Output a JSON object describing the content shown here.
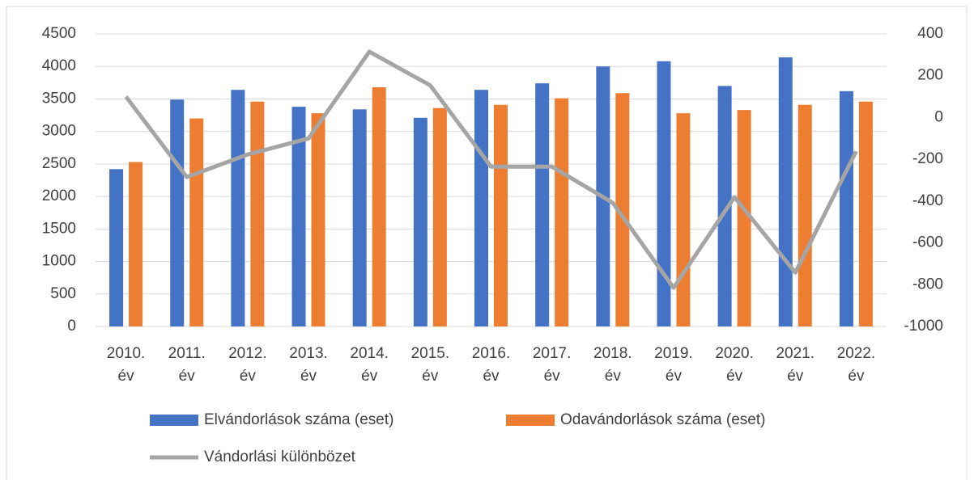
{
  "chart_data": {
    "type": "bar",
    "categories": [
      "2010. év",
      "2011. év",
      "2012. év",
      "2013. év",
      "2014. év",
      "2015. év",
      "2016. év",
      "2017. év",
      "2018. év",
      "2019. év",
      "2020. év",
      "2021. év",
      "2022. év"
    ],
    "series": [
      {
        "name": "Elvándorlások száma (eset)",
        "color": "#4472c4",
        "values": [
          2420,
          3490,
          3640,
          3380,
          3340,
          3210,
          3640,
          3740,
          4000,
          4080,
          3700,
          4140,
          3620
        ]
      },
      {
        "name": "Odavándorlások száma (eset)",
        "color": "#ed7d31",
        "values": [
          2530,
          3200,
          3460,
          3280,
          3680,
          3360,
          3410,
          3510,
          3590,
          3280,
          3330,
          3410,
          3460
        ]
      },
      {
        "name": "Vándorlási különbözet",
        "color": "#a5a5a5",
        "type": "line",
        "axis": "y2",
        "values": [
          100,
          -285,
          -177,
          -100,
          315,
          154,
          -235,
          -235,
          -408,
          -815,
          -381,
          -742,
          -162
        ]
      }
    ],
    "ylim": [
      0,
      4500
    ],
    "yticks": [
      0,
      500,
      1000,
      1500,
      2000,
      2500,
      3000,
      3500,
      4000,
      4500
    ],
    "y2lim": [
      -1000,
      400
    ],
    "y2ticks": [
      -1000,
      -800,
      -600,
      -400,
      -200,
      0,
      200,
      400
    ],
    "grid": true,
    "legend": "bottom"
  }
}
